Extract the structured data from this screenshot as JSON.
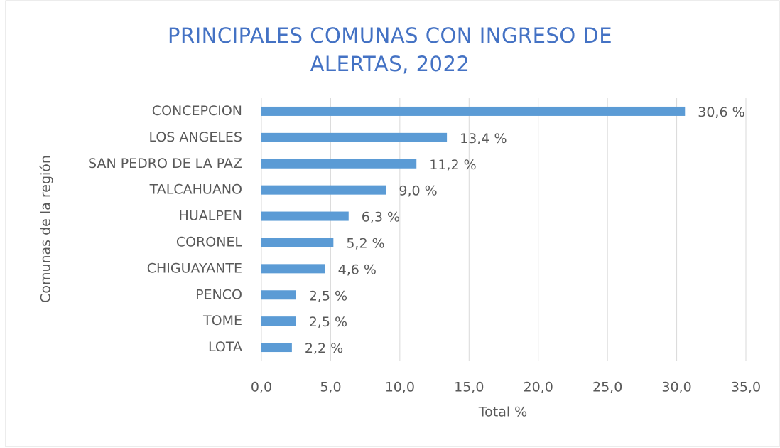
{
  "chart_data": {
    "type": "hbar",
    "title": "PRINCIPALES COMUNAS CON INGRESO DE ALERTAS, 2022",
    "x_label": "Total %",
    "y_label": "Comunas de la región",
    "categories": [
      "CONCEPCION",
      "LOS ANGELES",
      "SAN PEDRO DE LA PAZ",
      "TALCAHUANO",
      "HUALPEN",
      "CORONEL",
      "CHIGUAYANTE",
      "PENCO",
      "TOME",
      "LOTA"
    ],
    "values": [
      30.6,
      13.4,
      11.2,
      9.0,
      6.3,
      5.2,
      4.6,
      2.5,
      2.5,
      2.2
    ],
    "value_labels": [
      "30,6 %",
      "13,4 %",
      "11,2 %",
      "9,0 %",
      "6,3 %",
      "5,2 %",
      "4,6 %",
      "2,5 %",
      "2,5 %",
      "2,2 %"
    ],
    "color": "#5b9bd5",
    "xlim": [
      0,
      35
    ],
    "xticks": [
      {
        "value": 0,
        "label": "0,0"
      },
      {
        "value": 5,
        "label": "5,0"
      },
      {
        "value": 10,
        "label": "10,0"
      },
      {
        "value": 15,
        "label": "15,0"
      },
      {
        "value": 20,
        "label": "20,0"
      },
      {
        "value": 25,
        "label": "25,0"
      },
      {
        "value": 30,
        "label": "30,0"
      },
      {
        "value": 35,
        "label": "35,0"
      }
    ],
    "grid": true
  }
}
